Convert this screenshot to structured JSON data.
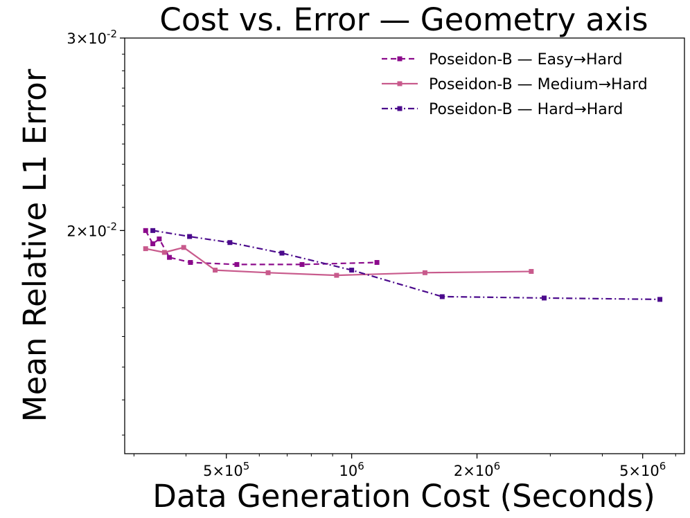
{
  "chart_data": {
    "type": "line",
    "title": "Cost vs. Error — Geometry axis",
    "xlabel": "Data Generation Cost (Seconds)",
    "ylabel": "Mean Relative L1 Error",
    "x_scale": "log",
    "y_scale": "log",
    "xlim": [
      285000,
      6300000
    ],
    "ylim": [
      0.0125,
      0.03
    ],
    "x_ticks": [
      {
        "value": 500000,
        "label": "5×10^5"
      },
      {
        "value": 1000000,
        "label": "10^6"
      },
      {
        "value": 2000000,
        "label": "2×10^6"
      },
      {
        "value": 5000000,
        "label": "5×10^6"
      }
    ],
    "y_ticks": [
      {
        "value": 0.02,
        "label": "2×10^-2"
      },
      {
        "value": 0.03,
        "label": "3×10^-2"
      }
    ],
    "legend_position": "top-right",
    "series": [
      {
        "name": "Poseidon-B — Easy→Hard",
        "color": "#8b0a8b",
        "line_style": "dashed",
        "marker": "square",
        "points": [
          [
            320000,
            0.02
          ],
          [
            333000,
            0.01945
          ],
          [
            345000,
            0.01965
          ],
          [
            365000,
            0.0189
          ],
          [
            410000,
            0.0187
          ],
          [
            530000,
            0.01862
          ],
          [
            760000,
            0.01862
          ],
          [
            1150000,
            0.0187
          ]
        ]
      },
      {
        "name": "Poseidon-B — Medium→Hard",
        "color": "#c85a8c",
        "line_style": "solid",
        "marker": "square",
        "points": [
          [
            320000,
            0.01925
          ],
          [
            355000,
            0.0191
          ],
          [
            395000,
            0.0193
          ],
          [
            470000,
            0.0184
          ],
          [
            630000,
            0.0183
          ],
          [
            920000,
            0.0182
          ],
          [
            1500000,
            0.0183
          ],
          [
            2700000,
            0.01835
          ]
        ]
      },
      {
        "name": "Poseidon-B — Hard→Hard",
        "color": "#4b0a8c",
        "line_style": "dashdot",
        "marker": "square",
        "points": [
          [
            333000,
            0.02
          ],
          [
            408000,
            0.01975
          ],
          [
            510000,
            0.0195
          ],
          [
            680000,
            0.01907
          ],
          [
            1000000,
            0.0184
          ],
          [
            1650000,
            0.0174
          ],
          [
            2900000,
            0.01735
          ],
          [
            5500000,
            0.0173
          ]
        ]
      }
    ]
  }
}
